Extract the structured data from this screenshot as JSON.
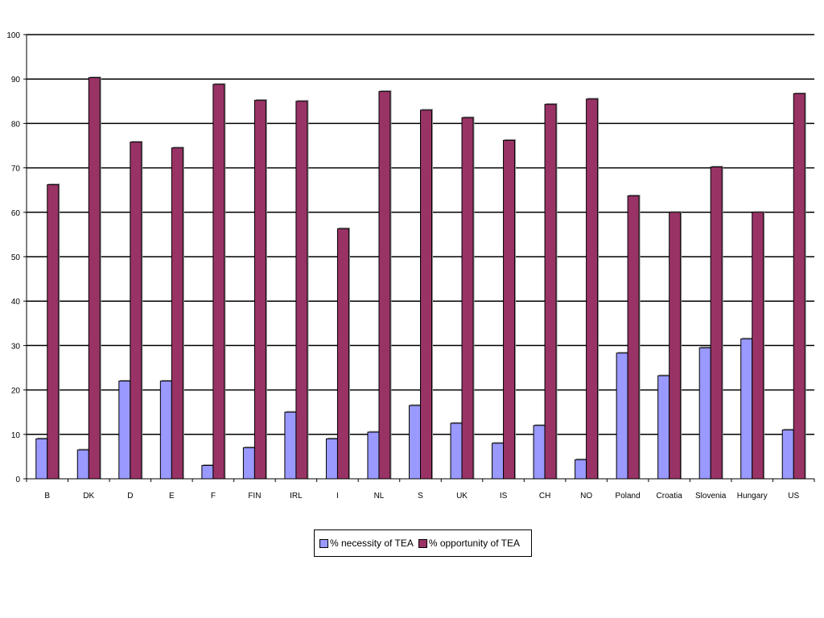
{
  "chart_data": {
    "type": "bar",
    "categories": [
      "B",
      "DK",
      "D",
      "E",
      "F",
      "FIN",
      "IRL",
      "I",
      "NL",
      "S",
      "UK",
      "IS",
      "CH",
      "NO",
      "Poland",
      "Croatia",
      "Slovenia",
      "Hungary",
      "US"
    ],
    "series": [
      {
        "name": "% necessity of TEA",
        "color": "#9999ff",
        "values": [
          9,
          6.5,
          22,
          22,
          3,
          7,
          15,
          9,
          10.5,
          16.5,
          12.5,
          8,
          12,
          4.3,
          28.3,
          23.2,
          29.5,
          31.5,
          11
        ]
      },
      {
        "name": "% opportunity of TEA",
        "color": "#993366",
        "values": [
          66.2,
          90.3,
          75.8,
          74.5,
          88.8,
          85.2,
          85,
          56.3,
          87.2,
          83,
          81.3,
          76.2,
          84.3,
          85.5,
          63.7,
          60,
          70.2,
          60,
          86.7
        ]
      }
    ],
    "ylim": [
      0,
      100
    ],
    "yticks": [
      0,
      10,
      20,
      30,
      40,
      50,
      60,
      70,
      80,
      90,
      100
    ],
    "grid": true,
    "legend_position": "bottom"
  }
}
